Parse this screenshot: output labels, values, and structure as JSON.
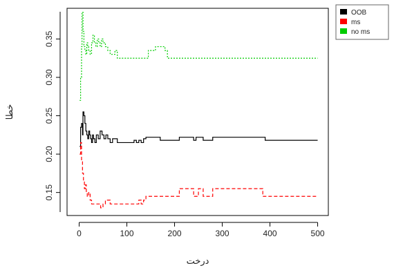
{
  "chart_data": {
    "type": "line",
    "xlabel": "درخت",
    "ylabel": "خطا",
    "xlim": [
      0,
      500
    ],
    "ylim": [
      0.12,
      0.39
    ],
    "x_ticks": [
      0,
      100,
      200,
      300,
      400,
      500
    ],
    "y_ticks": [
      0.15,
      0.2,
      0.25,
      0.3,
      0.35
    ],
    "x_tick_labels": [
      "0",
      "100",
      "200",
      "300",
      "400",
      "500"
    ],
    "y_tick_labels": [
      "0.15",
      "0.20",
      "0.25",
      "0.30",
      "0.35"
    ],
    "legend_position": "top-right",
    "grid": false,
    "series": [
      {
        "name": "OOB",
        "color": "#000000",
        "dash": "solid",
        "x": [
          1,
          3,
          5,
          7,
          8,
          10,
          12,
          14,
          16,
          18,
          20,
          22,
          24,
          26,
          28,
          30,
          33,
          36,
          40,
          44,
          48,
          52,
          56,
          60,
          65,
          70,
          80,
          90,
          100,
          110,
          115,
          120,
          125,
          130,
          135,
          140,
          150,
          160,
          170,
          180,
          190,
          200,
          210,
          220,
          230,
          240,
          245,
          260,
          280,
          300,
          340,
          380,
          390,
          420,
          460,
          500
        ],
        "y": [
          0.21,
          0.235,
          0.24,
          0.225,
          0.255,
          0.25,
          0.24,
          0.23,
          0.225,
          0.22,
          0.23,
          0.225,
          0.22,
          0.215,
          0.225,
          0.22,
          0.215,
          0.225,
          0.22,
          0.23,
          0.225,
          0.22,
          0.225,
          0.22,
          0.215,
          0.22,
          0.215,
          0.215,
          0.215,
          0.215,
          0.218,
          0.215,
          0.218,
          0.215,
          0.22,
          0.222,
          0.222,
          0.222,
          0.218,
          0.218,
          0.218,
          0.218,
          0.222,
          0.222,
          0.222,
          0.218,
          0.222,
          0.218,
          0.222,
          0.222,
          0.222,
          0.222,
          0.218,
          0.218,
          0.218,
          0.218
        ]
      },
      {
        "name": "ms",
        "color": "#ff0000",
        "dash": "dashed",
        "x": [
          1,
          3,
          5,
          7,
          9,
          11,
          13,
          15,
          17,
          20,
          23,
          26,
          30,
          35,
          40,
          45,
          50,
          55,
          60,
          65,
          70,
          80,
          90,
          100,
          110,
          120,
          125,
          130,
          135,
          140,
          150,
          170,
          190,
          200,
          210,
          220,
          230,
          240,
          250,
          260,
          270,
          280,
          300,
          340,
          380,
          385,
          400,
          450,
          500
        ],
        "y": [
          0.2,
          0.215,
          0.19,
          0.175,
          0.165,
          0.155,
          0.16,
          0.15,
          0.145,
          0.15,
          0.14,
          0.135,
          0.135,
          0.135,
          0.135,
          0.13,
          0.135,
          0.14,
          0.14,
          0.135,
          0.135,
          0.135,
          0.135,
          0.135,
          0.135,
          0.135,
          0.14,
          0.135,
          0.14,
          0.145,
          0.145,
          0.145,
          0.145,
          0.145,
          0.155,
          0.155,
          0.155,
          0.145,
          0.155,
          0.145,
          0.145,
          0.155,
          0.155,
          0.155,
          0.155,
          0.145,
          0.145,
          0.145,
          0.145
        ]
      },
      {
        "name": "no ms",
        "color": "#00cc00",
        "dash": "dotted",
        "x": [
          1,
          3,
          5,
          6,
          8,
          10,
          12,
          14,
          16,
          18,
          20,
          23,
          26,
          29,
          32,
          35,
          38,
          41,
          44,
          47,
          50,
          55,
          60,
          65,
          70,
          75,
          80,
          90,
          100,
          120,
          140,
          145,
          160,
          180,
          185,
          200,
          250,
          300,
          350,
          400,
          450,
          500
        ],
        "y": [
          0.27,
          0.3,
          0.34,
          0.385,
          0.36,
          0.34,
          0.335,
          0.33,
          0.345,
          0.34,
          0.335,
          0.33,
          0.345,
          0.355,
          0.345,
          0.34,
          0.35,
          0.345,
          0.34,
          0.35,
          0.345,
          0.34,
          0.335,
          0.33,
          0.33,
          0.335,
          0.325,
          0.325,
          0.325,
          0.325,
          0.325,
          0.335,
          0.34,
          0.335,
          0.325,
          0.325,
          0.325,
          0.325,
          0.325,
          0.325,
          0.325,
          0.325
        ]
      }
    ]
  }
}
